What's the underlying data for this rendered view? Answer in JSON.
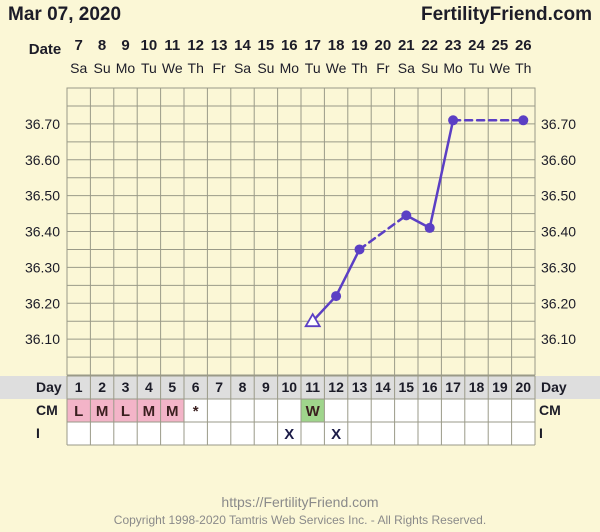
{
  "header": {
    "date": "Mar 07, 2020",
    "site": "FertilityFriend.com"
  },
  "labels": {
    "date_row": "Date",
    "day_row": "Day",
    "cm_row": "CM",
    "i_row": "I"
  },
  "columns": [
    {
      "date": "7",
      "dow": "Sa",
      "day": "1",
      "cm": "L",
      "i": ""
    },
    {
      "date": "8",
      "dow": "Su",
      "day": "2",
      "cm": "M",
      "i": ""
    },
    {
      "date": "9",
      "dow": "Mo",
      "day": "3",
      "cm": "L",
      "i": ""
    },
    {
      "date": "10",
      "dow": "Tu",
      "day": "4",
      "cm": "M",
      "i": ""
    },
    {
      "date": "11",
      "dow": "We",
      "day": "5",
      "cm": "M",
      "i": ""
    },
    {
      "date": "12",
      "dow": "Th",
      "day": "6",
      "cm": "*",
      "i": ""
    },
    {
      "date": "13",
      "dow": "Fr",
      "day": "7",
      "cm": "",
      "i": ""
    },
    {
      "date": "14",
      "dow": "Sa",
      "day": "8",
      "cm": "",
      "i": ""
    },
    {
      "date": "15",
      "dow": "Su",
      "day": "9",
      "cm": "",
      "i": ""
    },
    {
      "date": "16",
      "dow": "Mo",
      "day": "10",
      "cm": "",
      "i": "X"
    },
    {
      "date": "17",
      "dow": "Tu",
      "day": "11",
      "cm": "W",
      "i": ""
    },
    {
      "date": "18",
      "dow": "We",
      "day": "12",
      "cm": "",
      "i": "X"
    },
    {
      "date": "19",
      "dow": "Th",
      "day": "13",
      "cm": "",
      "i": ""
    },
    {
      "date": "20",
      "dow": "Fr",
      "day": "14",
      "cm": "",
      "i": ""
    },
    {
      "date": "21",
      "dow": "Sa",
      "day": "15",
      "cm": "",
      "i": ""
    },
    {
      "date": "22",
      "dow": "Su",
      "day": "16",
      "cm": "",
      "i": ""
    },
    {
      "date": "23",
      "dow": "Mo",
      "day": "17",
      "cm": "",
      "i": ""
    },
    {
      "date": "24",
      "dow": "Tu",
      "day": "18",
      "cm": "",
      "i": ""
    },
    {
      "date": "25",
      "dow": "We",
      "day": "19",
      "cm": "",
      "i": ""
    },
    {
      "date": "26",
      "dow": "Th",
      "day": "20",
      "cm": "",
      "i": ""
    }
  ],
  "cm_colors": {
    "L": "#f3b4c8",
    "M": "#f3b4c8",
    "W": "#9fd58c"
  },
  "chart_data": {
    "type": "line",
    "x_label": "Day",
    "y_ticks": [
      "36.10",
      "36.20",
      "36.30",
      "36.40",
      "36.50",
      "36.60",
      "36.70"
    ],
    "ylim": [
      36.0,
      36.8
    ],
    "grid": true,
    "series": [
      {
        "color": "#5b3fc4",
        "points": [
          {
            "day": 11,
            "temp": 36.15,
            "marker": "open-triangle"
          },
          {
            "day": 12,
            "temp": 36.22,
            "marker": "dot"
          },
          {
            "day": 13,
            "temp": 36.35,
            "marker": "dot"
          },
          {
            "day": 15,
            "temp": 36.445,
            "marker": "dot"
          },
          {
            "day": 16,
            "temp": 36.41,
            "marker": "dot"
          },
          {
            "day": 17,
            "temp": 36.71,
            "marker": "dot"
          },
          {
            "day": 20,
            "temp": 36.71,
            "marker": "dot"
          }
        ],
        "dashed_segments": [
          [
            13,
            15
          ],
          [
            17,
            20
          ]
        ]
      }
    ]
  },
  "footer": {
    "url": "https://FertilityFriend.com",
    "copyright": "Copyright 1998-2020 Tamtris Web Services Inc. - All Rights Reserved."
  }
}
